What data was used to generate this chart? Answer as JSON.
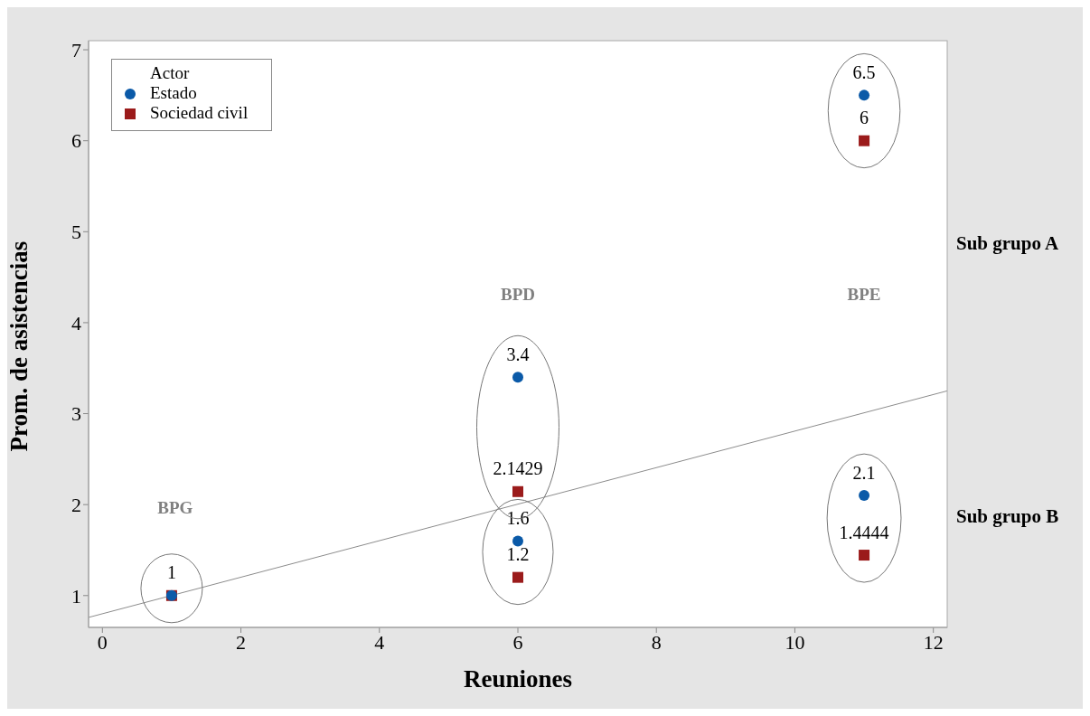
{
  "chart_data": {
    "type": "scatter",
    "xlabel": "Reuniones",
    "ylabel": "Prom. de asistencias",
    "legend_title": "Actor",
    "legend": "top left",
    "grid": false,
    "xlim": [
      -0.2,
      12.2
    ],
    "xticks": [
      0,
      2,
      4,
      6,
      8,
      10,
      12
    ],
    "ylim": [
      0.65,
      7.1
    ],
    "yticks": [
      1,
      2,
      3,
      4,
      5,
      6,
      7
    ],
    "series": [
      {
        "name": "Estado",
        "marker": "circle",
        "color": "#0b5aa8",
        "x": [
          1,
          6,
          6,
          11,
          11
        ],
        "values": [
          1,
          3.4,
          1.6,
          6.5,
          2.1
        ],
        "value_labels": [
          null,
          "3.4",
          "1.6",
          "6.5",
          "2.1"
        ]
      },
      {
        "name": "Sociedad civil",
        "marker": "square",
        "color": "#9b1b1b",
        "x": [
          1,
          6,
          6,
          11,
          11
        ],
        "values": [
          1,
          2.1429,
          1.2,
          6,
          1.4444
        ],
        "value_labels": [
          "1",
          "2.1429",
          "1.2",
          "6",
          "1.4444"
        ]
      },
      {
        "type": "line",
        "marker": "none",
        "color": "#8c8c8c",
        "x": [
          -0.2,
          12.2
        ],
        "values": [
          0.76,
          3.25
        ]
      }
    ],
    "annotations": [
      "BPG",
      "BPD",
      "BPE",
      "Sub grupo A",
      "Sub grupo B"
    ]
  }
}
